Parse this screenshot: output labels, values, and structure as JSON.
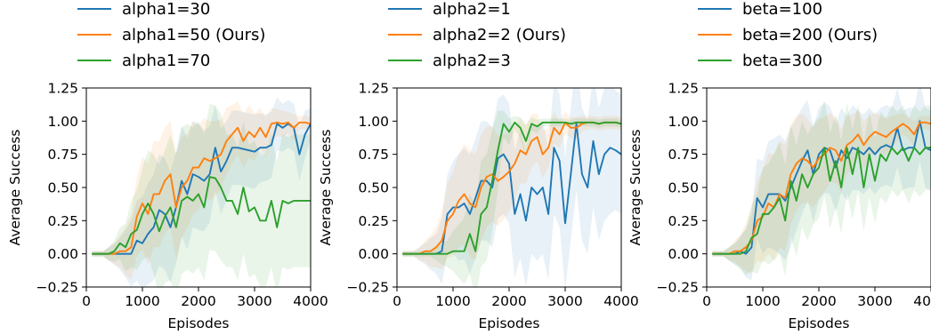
{
  "chart_data": [
    {
      "type": "line",
      "xlabel": "Episodes",
      "ylabel": "Average Success",
      "xlim": [
        0,
        4000
      ],
      "ylim": [
        -0.25,
        1.25
      ],
      "xticks": [
        0,
        1000,
        2000,
        3000,
        4000
      ],
      "xtick_labels": [
        "0",
        "1000",
        "2000",
        "3000",
        "4000"
      ],
      "yticks": [
        -0.25,
        0.0,
        0.25,
        0.5,
        0.75,
        1.0,
        1.25
      ],
      "ytick_labels": [
        "−0.25",
        "0.00",
        "0.25",
        "0.50",
        "0.75",
        "1.00",
        "1.25"
      ],
      "legend_position": "top",
      "x": [
        100,
        200,
        300,
        400,
        500,
        600,
        700,
        800,
        900,
        1000,
        1100,
        1200,
        1300,
        1400,
        1500,
        1600,
        1700,
        1800,
        1900,
        2000,
        2100,
        2200,
        2300,
        2400,
        2500,
        2600,
        2700,
        2800,
        2900,
        3000,
        3100,
        3200,
        3300,
        3400,
        3500,
        3600,
        3700,
        3800,
        3900,
        4000
      ],
      "series": [
        {
          "name": "alpha1=30",
          "color": "#1f77b4",
          "values": [
            0,
            0,
            0,
            0,
            0,
            0,
            0,
            0,
            0.1,
            0.08,
            0.15,
            0.2,
            0.33,
            0.3,
            0.2,
            0.35,
            0.55,
            0.45,
            0.6,
            0.58,
            0.55,
            0.6,
            0.8,
            0.62,
            0.7,
            0.8,
            0.8,
            0.79,
            0.78,
            0.77,
            0.8,
            0.8,
            0.82,
            0.98,
            0.95,
            0.98,
            0.95,
            0.75,
            0.9,
            0.98
          ],
          "band": [
            0.02,
            0.02,
            0.02,
            0.05,
            0.08,
            0.12,
            0.18,
            0.25,
            0.3,
            0.35,
            0.38,
            0.4,
            0.42,
            0.42,
            0.42,
            0.42,
            0.42,
            0.42,
            0.4,
            0.4,
            0.38,
            0.36,
            0.32,
            0.32,
            0.3,
            0.28,
            0.28,
            0.28,
            0.28,
            0.28,
            0.26,
            0.25,
            0.25,
            0.2,
            0.18,
            0.18,
            0.18,
            0.2,
            0.18,
            0.12
          ]
        },
        {
          "name": "alpha1=50 (Ours)",
          "color": "#ff7f0e",
          "values": [
            0,
            0,
            0,
            0,
            0,
            0.02,
            0.02,
            0.05,
            0.28,
            0.38,
            0.3,
            0.45,
            0.45,
            0.55,
            0.6,
            0.35,
            0.5,
            0.55,
            0.65,
            0.65,
            0.72,
            0.7,
            0.72,
            0.75,
            0.85,
            0.9,
            0.95,
            0.85,
            0.92,
            0.88,
            0.95,
            0.88,
            0.98,
            0.99,
            0.98,
            0.99,
            0.95,
            0.99,
            0.99,
            0.98
          ],
          "band": [
            0.02,
            0.02,
            0.02,
            0.05,
            0.08,
            0.12,
            0.18,
            0.25,
            0.3,
            0.35,
            0.38,
            0.4,
            0.4,
            0.4,
            0.4,
            0.4,
            0.38,
            0.36,
            0.35,
            0.32,
            0.3,
            0.3,
            0.28,
            0.26,
            0.25,
            0.22,
            0.2,
            0.2,
            0.2,
            0.18,
            0.15,
            0.15,
            0.12,
            0.1,
            0.1,
            0.08,
            0.1,
            0.05,
            0.05,
            0.05
          ]
        },
        {
          "name": "alpha1=70",
          "color": "#2ca02c",
          "values": [
            0,
            0,
            0,
            0,
            0.02,
            0.08,
            0.05,
            0.15,
            0.18,
            0.3,
            0.38,
            0.3,
            0.17,
            0.28,
            0.35,
            0.2,
            0.4,
            0.43,
            0.4,
            0.45,
            0.35,
            0.58,
            0.57,
            0.5,
            0.4,
            0.4,
            0.3,
            0.5,
            0.32,
            0.35,
            0.25,
            0.25,
            0.4,
            0.2,
            0.4,
            0.38,
            0.4,
            0.4,
            0.4,
            0.4
          ],
          "band": [
            0.02,
            0.02,
            0.02,
            0.05,
            0.08,
            0.12,
            0.18,
            0.25,
            0.3,
            0.35,
            0.4,
            0.45,
            0.5,
            0.5,
            0.55,
            0.55,
            0.55,
            0.55,
            0.55,
            0.55,
            0.55,
            0.55,
            0.55,
            0.55,
            0.5,
            0.5,
            0.5,
            0.5,
            0.5,
            0.5,
            0.5,
            0.5,
            0.5,
            0.5,
            0.5,
            0.5,
            0.5,
            0.5,
            0.5,
            0.5
          ]
        }
      ]
    },
    {
      "type": "line",
      "xlabel": "Episodes",
      "ylabel": "Average Success",
      "xlim": [
        0,
        4000
      ],
      "ylim": [
        -0.25,
        1.25
      ],
      "xticks": [
        0,
        1000,
        2000,
        3000,
        4000
      ],
      "xtick_labels": [
        "0",
        "1000",
        "2000",
        "3000",
        "4000"
      ],
      "yticks": [
        -0.25,
        0.0,
        0.25,
        0.5,
        0.75,
        1.0,
        1.25
      ],
      "ytick_labels": [
        "−0.25",
        "0.00",
        "0.25",
        "0.50",
        "0.75",
        "1.00",
        "1.25"
      ],
      "legend_position": "top",
      "x": [
        100,
        200,
        300,
        400,
        500,
        600,
        700,
        800,
        900,
        1000,
        1100,
        1200,
        1300,
        1400,
        1500,
        1600,
        1700,
        1800,
        1900,
        2000,
        2100,
        2200,
        2300,
        2400,
        2500,
        2600,
        2700,
        2800,
        2900,
        3000,
        3100,
        3200,
        3300,
        3400,
        3500,
        3600,
        3700,
        3800,
        3900,
        4000
      ],
      "series": [
        {
          "name": "alpha2=1",
          "color": "#1f77b4",
          "values": [
            0,
            0,
            0,
            0,
            0,
            0,
            0,
            0.02,
            0.3,
            0.35,
            0.35,
            0.38,
            0.3,
            0.42,
            0.55,
            0.55,
            0.5,
            0.72,
            0.75,
            0.68,
            0.3,
            0.45,
            0.25,
            0.5,
            0.45,
            0.5,
            0.3,
            0.8,
            0.7,
            0.23,
            0.6,
            0.98,
            0.6,
            0.5,
            0.85,
            0.6,
            0.75,
            0.8,
            0.78,
            0.75
          ],
          "band": [
            0.02,
            0.02,
            0.02,
            0.05,
            0.08,
            0.12,
            0.15,
            0.25,
            0.3,
            0.35,
            0.4,
            0.42,
            0.45,
            0.45,
            0.45,
            0.45,
            0.45,
            0.45,
            0.45,
            0.45,
            0.48,
            0.48,
            0.5,
            0.5,
            0.5,
            0.5,
            0.5,
            0.5,
            0.5,
            0.5,
            0.5,
            0.5,
            0.5,
            0.5,
            0.5,
            0.5,
            0.5,
            0.5,
            0.45,
            0.45
          ]
        },
        {
          "name": "alpha2=2 (Ours)",
          "color": "#ff7f0e",
          "values": [
            0,
            0,
            0,
            0,
            0.02,
            0.02,
            0.05,
            0.1,
            0.25,
            0.3,
            0.4,
            0.45,
            0.38,
            0.35,
            0.5,
            0.58,
            0.6,
            0.55,
            0.58,
            0.62,
            0.68,
            0.78,
            0.75,
            0.85,
            0.88,
            0.75,
            0.8,
            0.95,
            0.9,
            0.99,
            0.95,
            0.95,
            0.98,
            0.99,
            0.99,
            0.98,
            0.99,
            0.99,
            0.99,
            0.98
          ],
          "band": [
            0.02,
            0.02,
            0.02,
            0.05,
            0.08,
            0.12,
            0.15,
            0.22,
            0.28,
            0.32,
            0.35,
            0.38,
            0.4,
            0.4,
            0.4,
            0.38,
            0.36,
            0.34,
            0.32,
            0.3,
            0.28,
            0.25,
            0.22,
            0.2,
            0.18,
            0.18,
            0.15,
            0.12,
            0.1,
            0.08,
            0.08,
            0.08,
            0.06,
            0.05,
            0.05,
            0.05,
            0.05,
            0.05,
            0.05,
            0.05
          ]
        },
        {
          "name": "alpha2=3",
          "color": "#2ca02c",
          "values": [
            0,
            0,
            0,
            0,
            0,
            0,
            0,
            0,
            0,
            0.02,
            0.02,
            0.02,
            0.15,
            0.02,
            0.3,
            0.35,
            0.55,
            0.78,
            0.98,
            0.92,
            0.99,
            0.95,
            0.85,
            0.98,
            0.96,
            0.99,
            0.99,
            0.99,
            0.99,
            0.99,
            0.98,
            0.99,
            0.99,
            0.99,
            0.99,
            0.98,
            0.99,
            0.99,
            0.99,
            0.98
          ],
          "band": [
            0.02,
            0.02,
            0.02,
            0.02,
            0.02,
            0.02,
            0.05,
            0.08,
            0.1,
            0.15,
            0.2,
            0.25,
            0.3,
            0.35,
            0.4,
            0.4,
            0.38,
            0.3,
            0.1,
            0.1,
            0.05,
            0.08,
            0.12,
            0.05,
            0.05,
            0.03,
            0.03,
            0.03,
            0.03,
            0.03,
            0.03,
            0.03,
            0.03,
            0.03,
            0.03,
            0.03,
            0.03,
            0.03,
            0.03,
            0.03
          ]
        }
      ]
    },
    {
      "type": "line",
      "xlabel": "Episodes",
      "ylabel": "Average Success",
      "xlim": [
        0,
        4000
      ],
      "ylim": [
        -0.25,
        1.25
      ],
      "xticks": [
        0,
        1000,
        2000,
        3000,
        4000
      ],
      "xtick_labels": [
        "0",
        "1000",
        "2000",
        "3000",
        "4000"
      ],
      "yticks": [
        -0.25,
        0.0,
        0.25,
        0.5,
        0.75,
        1.0,
        1.25
      ],
      "ytick_labels": [
        "−0.25",
        "0.00",
        "0.25",
        "0.50",
        "0.75",
        "1.00",
        "1.25"
      ],
      "legend_position": "top",
      "x": [
        100,
        200,
        300,
        400,
        500,
        600,
        700,
        800,
        900,
        1000,
        1100,
        1200,
        1300,
        1400,
        1500,
        1600,
        1700,
        1800,
        1900,
        2000,
        2100,
        2200,
        2300,
        2400,
        2500,
        2600,
        2700,
        2800,
        2900,
        3000,
        3100,
        3200,
        3300,
        3400,
        3500,
        3600,
        3700,
        3800,
        3900,
        4000
      ],
      "series": [
        {
          "name": "beta=100",
          "color": "#1f77b4",
          "values": [
            0,
            0,
            0,
            0,
            0,
            0.02,
            0,
            0.05,
            0.42,
            0.35,
            0.45,
            0.45,
            0.45,
            0.4,
            0.5,
            0.6,
            0.7,
            0.78,
            0.6,
            0.75,
            0.8,
            0.78,
            0.65,
            0.78,
            0.72,
            0.8,
            0.78,
            0.75,
            0.8,
            0.75,
            0.8,
            0.82,
            0.8,
            0.95,
            0.78,
            0.8,
            0.8,
            1.0,
            0.8,
            0.78
          ],
          "band": [
            0.02,
            0.02,
            0.02,
            0.05,
            0.08,
            0.12,
            0.18,
            0.25,
            0.3,
            0.35,
            0.4,
            0.42,
            0.45,
            0.45,
            0.45,
            0.42,
            0.4,
            0.38,
            0.36,
            0.35,
            0.34,
            0.33,
            0.33,
            0.32,
            0.32,
            0.32,
            0.3,
            0.3,
            0.3,
            0.3,
            0.3,
            0.3,
            0.3,
            0.3,
            0.3,
            0.3,
            0.3,
            0.3,
            0.3,
            0.3
          ]
        },
        {
          "name": "beta=200 (Ours)",
          "color": "#ff7f0e",
          "values": [
            0,
            0,
            0,
            0,
            0.02,
            0.02,
            0.05,
            0.1,
            0.25,
            0.28,
            0.38,
            0.35,
            0.45,
            0.42,
            0.6,
            0.68,
            0.72,
            0.7,
            0.65,
            0.72,
            0.75,
            0.8,
            0.78,
            0.7,
            0.82,
            0.85,
            0.9,
            0.82,
            0.88,
            0.92,
            0.9,
            0.88,
            0.92,
            0.95,
            0.98,
            0.95,
            0.9,
            0.99,
            0.99,
            0.98
          ],
          "band": [
            0.02,
            0.02,
            0.02,
            0.05,
            0.08,
            0.12,
            0.18,
            0.25,
            0.3,
            0.35,
            0.38,
            0.4,
            0.4,
            0.4,
            0.38,
            0.36,
            0.34,
            0.32,
            0.3,
            0.3,
            0.28,
            0.26,
            0.25,
            0.24,
            0.22,
            0.2,
            0.18,
            0.18,
            0.16,
            0.15,
            0.14,
            0.14,
            0.12,
            0.1,
            0.08,
            0.08,
            0.1,
            0.05,
            0.05,
            0.05
          ]
        },
        {
          "name": "beta=300",
          "color": "#2ca02c",
          "values": [
            0,
            0,
            0,
            0,
            0,
            0,
            0.02,
            0.12,
            0.15,
            0.3,
            0.3,
            0.35,
            0.42,
            0.25,
            0.55,
            0.4,
            0.6,
            0.5,
            0.6,
            0.65,
            0.8,
            0.55,
            0.7,
            0.5,
            0.8,
            0.6,
            0.8,
            0.5,
            0.75,
            0.55,
            0.75,
            0.7,
            0.8,
            0.75,
            0.8,
            0.7,
            0.8,
            0.75,
            0.8,
            0.8
          ],
          "band": [
            0.02,
            0.02,
            0.02,
            0.05,
            0.08,
            0.12,
            0.18,
            0.25,
            0.3,
            0.35,
            0.38,
            0.4,
            0.42,
            0.42,
            0.42,
            0.42,
            0.4,
            0.4,
            0.38,
            0.38,
            0.36,
            0.36,
            0.35,
            0.35,
            0.34,
            0.34,
            0.33,
            0.33,
            0.32,
            0.32,
            0.32,
            0.32,
            0.32,
            0.32,
            0.32,
            0.32,
            0.32,
            0.32,
            0.32,
            0.32
          ]
        }
      ]
    }
  ]
}
